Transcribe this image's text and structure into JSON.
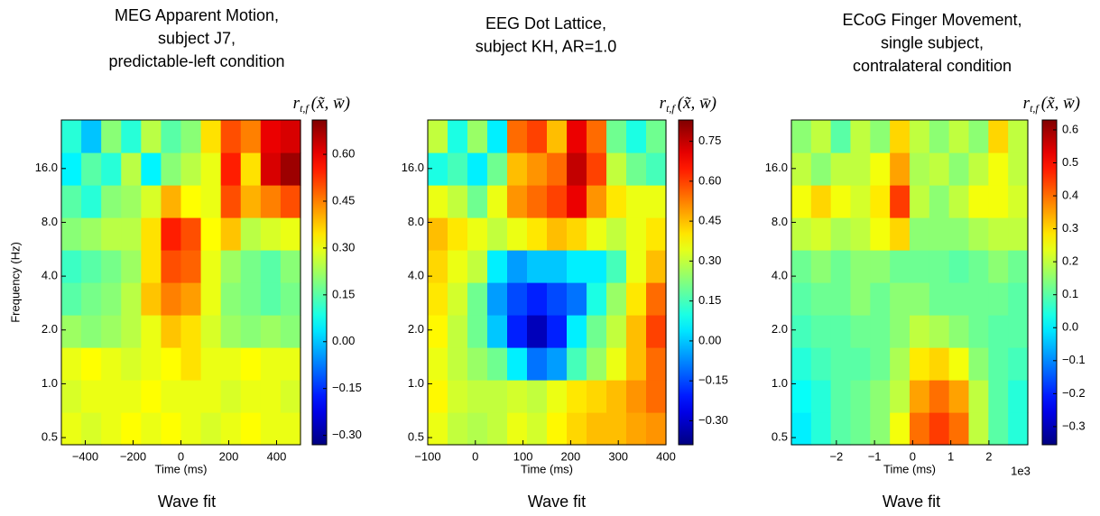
{
  "chart_data": [
    {
      "type": "heatmap",
      "title": [
        "MEG Apparent Motion,",
        "subject J7,",
        "predictable-left condition"
      ],
      "xlabel": "Time (ms)",
      "ylabel": "Frequency (Hz)",
      "caption": "Wave fit",
      "colorbar_label": {
        "main": "r",
        "sub": "t,f",
        "args": "(x̃, w̄)"
      },
      "colormap": "jet",
      "ylog": true,
      "xlim": [
        -500,
        500
      ],
      "xticks": [
        {
          "value": -400,
          "label": "−400"
        },
        {
          "value": -200,
          "label": "−200"
        },
        0,
        200,
        400
      ],
      "ylim": [
        0.456,
        29.9
      ],
      "yticks": [
        0.5,
        {
          "value": 1,
          "label": "1.0"
        },
        {
          "value": 2,
          "label": "2.0"
        },
        {
          "value": 4,
          "label": "4.0"
        },
        {
          "value": 8,
          "label": "8.0"
        },
        {
          "value": 16,
          "label": "16.0"
        }
      ],
      "zlim": [
        -0.33,
        0.71
      ],
      "zticks": [
        {
          "value": -0.3,
          "label": "−0.30"
        },
        {
          "value": -0.15,
          "label": "−0.15"
        },
        {
          "value": 0,
          "label": "0.00"
        },
        {
          "value": 0.15,
          "label": "0.15"
        },
        {
          "value": 0.3,
          "label": "0.30"
        },
        {
          "value": 0.45,
          "label": "0.45"
        },
        {
          "value": 0.6,
          "label": "0.60"
        }
      ],
      "z": [
        [
          0.3,
          0.28,
          0.3,
          0.32,
          0.3,
          0.32,
          0.3,
          0.28,
          0.3,
          0.32,
          0.3,
          0.3
        ],
        [
          0.28,
          0.3,
          0.3,
          0.3,
          0.32,
          0.3,
          0.3,
          0.3,
          0.28,
          0.3,
          0.3,
          0.28
        ],
        [
          0.3,
          0.32,
          0.3,
          0.28,
          0.3,
          0.32,
          0.35,
          0.3,
          0.3,
          0.32,
          0.3,
          0.3
        ],
        [
          0.22,
          0.2,
          0.22,
          0.25,
          0.3,
          0.38,
          0.35,
          0.28,
          0.22,
          0.2,
          0.22,
          0.2
        ],
        [
          0.15,
          0.18,
          0.2,
          0.25,
          0.38,
          0.45,
          0.42,
          0.3,
          0.2,
          0.18,
          0.15,
          0.18
        ],
        [
          0.12,
          0.15,
          0.18,
          0.22,
          0.35,
          0.5,
          0.48,
          0.3,
          0.22,
          0.18,
          0.15,
          0.2
        ],
        [
          0.2,
          0.22,
          0.25,
          0.25,
          0.35,
          0.55,
          0.5,
          0.32,
          0.38,
          0.25,
          0.28,
          0.3
        ],
        [
          0.15,
          0.1,
          0.2,
          0.22,
          0.28,
          0.4,
          0.32,
          0.3,
          0.5,
          0.4,
          0.45,
          0.5
        ],
        [
          0.05,
          0.15,
          0.1,
          0.25,
          0.05,
          0.2,
          0.25,
          0.3,
          0.55,
          0.35,
          0.62,
          0.68
        ],
        [
          0.1,
          0,
          0.2,
          0.1,
          0.25,
          0.15,
          0.2,
          0.35,
          0.5,
          0.45,
          0.6,
          0.62
        ]
      ]
    },
    {
      "type": "heatmap",
      "title": [
        "EEG Dot Lattice,",
        "subject KH, AR=1.0"
      ],
      "xlabel": "Time (ms)",
      "caption": "Wave fit",
      "colorbar_label": {
        "main": "r",
        "sub": "t,f",
        "args": "(x̃, w̄)"
      },
      "colormap": "jet",
      "ylog": true,
      "xlim": [
        -100,
        400
      ],
      "xticks": [
        {
          "value": -100,
          "label": "−100"
        },
        0,
        100,
        200,
        300,
        400
      ],
      "ylim": [
        0.456,
        29.9
      ],
      "yticks": [
        0.5,
        {
          "value": 1,
          "label": "1.0"
        },
        {
          "value": 2,
          "label": "2.0"
        },
        {
          "value": 4,
          "label": "4.0"
        },
        {
          "value": 8,
          "label": "8.0"
        },
        {
          "value": 16,
          "label": "16.0"
        }
      ],
      "zlim": [
        -0.39,
        0.83
      ],
      "zticks": [
        {
          "value": -0.3,
          "label": "−0.30"
        },
        {
          "value": -0.15,
          "label": "−0.15"
        },
        {
          "value": 0,
          "label": "0.00"
        },
        {
          "value": 0.15,
          "label": "0.15"
        },
        {
          "value": 0.3,
          "label": "0.30"
        },
        {
          "value": 0.45,
          "label": "0.45"
        },
        {
          "value": 0.6,
          "label": "0.60"
        },
        {
          "value": 0.75,
          "label": "0.75"
        }
      ],
      "z": [
        [
          0.35,
          0.3,
          0.28,
          0.3,
          0.35,
          0.32,
          0.38,
          0.42,
          0.45,
          0.45,
          0.48,
          0.5
        ],
        [
          0.38,
          0.32,
          0.3,
          0.3,
          0.32,
          0.3,
          0.35,
          0.4,
          0.42,
          0.45,
          0.5,
          0.55
        ],
        [
          0.35,
          0.3,
          0.25,
          0.2,
          0.05,
          -0.1,
          -0.05,
          0.15,
          0.25,
          0.35,
          0.45,
          0.55
        ],
        [
          0.38,
          0.3,
          0.2,
          0,
          -0.2,
          -0.32,
          -0.2,
          0.05,
          0.2,
          0.3,
          0.45,
          0.6
        ],
        [
          0.4,
          0.32,
          0.2,
          -0.05,
          -0.15,
          -0.2,
          -0.15,
          -0.1,
          0.1,
          0.25,
          0.4,
          0.55
        ],
        [
          0.42,
          0.35,
          0.3,
          0.05,
          -0.05,
          0,
          0,
          0.05,
          0.05,
          0.15,
          0.35,
          0.45
        ],
        [
          0.45,
          0.4,
          0.35,
          0.3,
          0.35,
          0.4,
          0.45,
          0.42,
          0.35,
          0.3,
          0.35,
          0.4
        ],
        [
          0.35,
          0.3,
          0.2,
          0.35,
          0.5,
          0.55,
          0.6,
          0.7,
          0.5,
          0.4,
          0.35,
          0.35
        ],
        [
          0.1,
          0.15,
          0.05,
          0.2,
          0.45,
          0.5,
          0.55,
          0.75,
          0.6,
          0.3,
          0.2,
          0.15
        ],
        [
          0.3,
          0.1,
          0.25,
          0.05,
          0.55,
          0.6,
          0.45,
          0.7,
          0.55,
          0.2,
          0.1,
          0.2
        ]
      ]
    },
    {
      "type": "heatmap",
      "title": [
        "ECoG Finger Movement,",
        "single subject,",
        "contralateral condition"
      ],
      "xlabel": "Time (ms)",
      "x_offset_label": "1e3",
      "caption": "Wave fit",
      "colorbar_label": {
        "main": "r",
        "sub": "t,f",
        "args": "(x̃, w̄)"
      },
      "colormap": "jet",
      "ylog": true,
      "xlim": [
        -3180,
        3020
      ],
      "xticks": [
        {
          "value": -2000,
          "label": "−2"
        },
        {
          "value": -1000,
          "label": "−1"
        },
        {
          "value": 0,
          "label": "0"
        },
        {
          "value": 1000,
          "label": "1"
        },
        {
          "value": 2000,
          "label": "2"
        }
      ],
      "ylim": [
        0.456,
        29.9
      ],
      "yticks": [
        0.5,
        {
          "value": 1,
          "label": "1.0"
        },
        {
          "value": 2,
          "label": "2.0"
        },
        {
          "value": 4,
          "label": "4.0"
        },
        {
          "value": 8,
          "label": "8.0"
        },
        {
          "value": 16,
          "label": "16.0"
        }
      ],
      "zlim": [
        -0.355,
        0.63
      ],
      "zticks": [
        {
          "value": -0.3,
          "label": "−0.3"
        },
        {
          "value": -0.2,
          "label": "−0.2"
        },
        {
          "value": -0.1,
          "label": "−0.1"
        },
        {
          "value": 0,
          "label": "0.0"
        },
        0.1,
        0.2,
        0.3,
        0.4,
        0.5,
        0.6
      ],
      "z": [
        [
          0,
          0.05,
          0.1,
          0.12,
          0.15,
          0.25,
          0.4,
          0.45,
          0.4,
          0.2,
          0.1,
          0.05
        ],
        [
          0.02,
          0.05,
          0.1,
          0.12,
          0.15,
          0.2,
          0.35,
          0.4,
          0.35,
          0.2,
          0.1,
          0.05
        ],
        [
          0.05,
          0.08,
          0.1,
          0.1,
          0.12,
          0.18,
          0.28,
          0.3,
          0.25,
          0.15,
          0.1,
          0.08
        ],
        [
          0.08,
          0.1,
          0.1,
          0.12,
          0.12,
          0.15,
          0.2,
          0.18,
          0.15,
          0.12,
          0.1,
          0.1
        ],
        [
          0.1,
          0.12,
          0.12,
          0.15,
          0.12,
          0.15,
          0.15,
          0.12,
          0.12,
          0.12,
          0.12,
          0.1
        ],
        [
          0.12,
          0.15,
          0.12,
          0.15,
          0.15,
          0.12,
          0.12,
          0.12,
          0.1,
          0.12,
          0.15,
          0.12
        ],
        [
          0.2,
          0.22,
          0.18,
          0.2,
          0.25,
          0.3,
          0.15,
          0.15,
          0.15,
          0.18,
          0.2,
          0.2
        ],
        [
          0.25,
          0.3,
          0.25,
          0.22,
          0.28,
          0.45,
          0.2,
          0.15,
          0.2,
          0.25,
          0.25,
          0.22
        ],
        [
          0.2,
          0.15,
          0.2,
          0.2,
          0.25,
          0.35,
          0.18,
          0.2,
          0.15,
          0.2,
          0.25,
          0.2
        ],
        [
          0.15,
          0.2,
          0.1,
          0.2,
          0.15,
          0.3,
          0.2,
          0.15,
          0.2,
          0.15,
          0.3,
          0.2
        ]
      ]
    }
  ]
}
